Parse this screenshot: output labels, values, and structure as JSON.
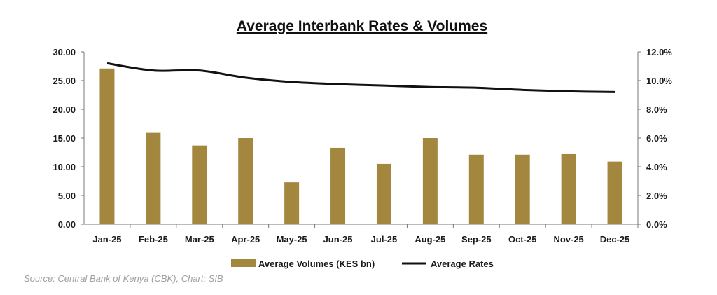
{
  "chart_data": {
    "type": "bar+line",
    "title": "Average Interbank Rates & Volumes",
    "categories": [
      "Jan-25",
      "Feb-25",
      "Mar-25",
      "Apr-25",
      "May-25",
      "Jun-25",
      "Jul-25",
      "Aug-25",
      "Sep-25",
      "Oct-25",
      "Nov-25",
      "Dec-25"
    ],
    "series": [
      {
        "name": "Average Volumes (KES bn)",
        "type": "bar",
        "axis": "left",
        "color": "#A4873F",
        "values": [
          27.1,
          15.9,
          13.7,
          15.0,
          7.3,
          13.3,
          10.5,
          15.0,
          12.1,
          12.1,
          12.2,
          10.9
        ]
      },
      {
        "name": "Average Rates",
        "type": "line",
        "axis": "right",
        "color": "#111111",
        "values": [
          11.2,
          10.7,
          10.7,
          10.2,
          9.9,
          9.75,
          9.65,
          9.55,
          9.5,
          9.35,
          9.25,
          9.2
        ]
      }
    ],
    "left_axis": {
      "range": [
        0,
        30
      ],
      "ticks": [
        "0.00",
        "5.00",
        "10.00",
        "15.00",
        "20.00",
        "25.00",
        "30.00"
      ]
    },
    "right_axis": {
      "range": [
        0,
        12
      ],
      "ticks": [
        "0.0%",
        "2.0%",
        "4.0%",
        "6.0%",
        "8.0%",
        "10.0%",
        "12.0%"
      ]
    },
    "legend_position": "bottom",
    "grid": false,
    "source": "Source: Central Bank of Kenya (CBK), Chart: SIB"
  }
}
